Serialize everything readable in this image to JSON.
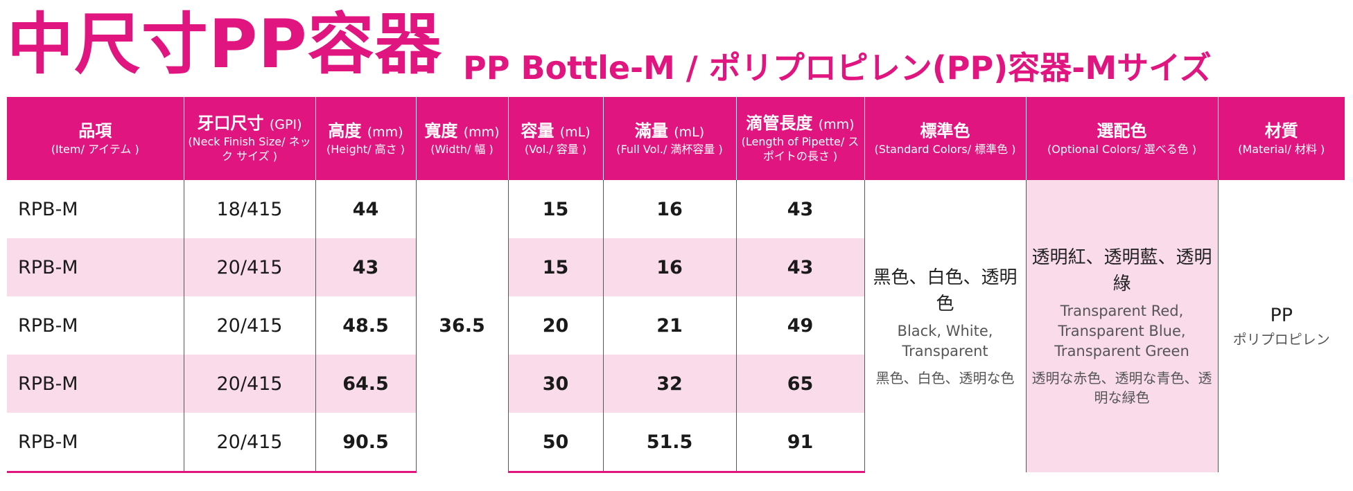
{
  "title": {
    "main": "中尺寸PP容器",
    "sub": "PP Bottle-M / ポリプロピレン(PP)容器-Mサイズ"
  },
  "headers": [
    {
      "main": "品項",
      "unit": "",
      "sub": "(Item/ アイテム )"
    },
    {
      "main": "牙口尺寸",
      "unit": "(GPI)",
      "sub": "(Neck Finish Size/ ネック サイズ )"
    },
    {
      "main": "高度",
      "unit": "(mm)",
      "sub": "(Height/ 高さ )"
    },
    {
      "main": "寬度",
      "unit": "(mm)",
      "sub": "(Width/ 幅 )"
    },
    {
      "main": "容量",
      "unit": "(mL)",
      "sub": "(Vol./ 容量 )"
    },
    {
      "main": "滿量",
      "unit": "(mL)",
      "sub": "(Full Vol./ 満杯容量 )"
    },
    {
      "main": "滴管長度",
      "unit": "(mm)",
      "sub": "(Length of Pipette/ スポイトの長さ )"
    },
    {
      "main": "標準色",
      "unit": "",
      "sub": "(Standard Colors/ 標準色 )"
    },
    {
      "main": "選配色",
      "unit": "",
      "sub": "(Optional Colors/ 選べる色 )"
    },
    {
      "main": "材質",
      "unit": "",
      "sub": "(Material/ 材料 )"
    }
  ],
  "rows": [
    {
      "item": "RPB-M",
      "neck": "18/415",
      "height": "44",
      "vol": "15",
      "full": "16",
      "pipette": "43"
    },
    {
      "item": "RPB-M",
      "neck": "20/415",
      "height": "43",
      "vol": "15",
      "full": "16",
      "pipette": "43"
    },
    {
      "item": "RPB-M",
      "neck": "20/415",
      "height": "48.5",
      "vol": "20",
      "full": "21",
      "pipette": "49"
    },
    {
      "item": "RPB-M",
      "neck": "20/415",
      "height": "64.5",
      "vol": "30",
      "full": "32",
      "pipette": "65"
    },
    {
      "item": "RPB-M",
      "neck": "20/415",
      "height": "90.5",
      "vol": "50",
      "full": "51.5",
      "pipette": "91"
    }
  ],
  "width_value": "36.5",
  "standard_colors": {
    "zh": "黑色、白色、透明色",
    "en": "Black, White, Transparent",
    "ja": "黑色、白色、透明な色"
  },
  "optional_colors": {
    "zh": "透明紅、透明藍、透明綠",
    "en": "Transparent Red, Transparent Blue, Transparent Green",
    "ja": "透明な赤色、透明な青色、透明な緑色"
  },
  "material": {
    "main": "PP",
    "sub": "ポリプロピレン"
  },
  "colors": {
    "brand": "#e0157f",
    "band": "#f9dbe9"
  }
}
